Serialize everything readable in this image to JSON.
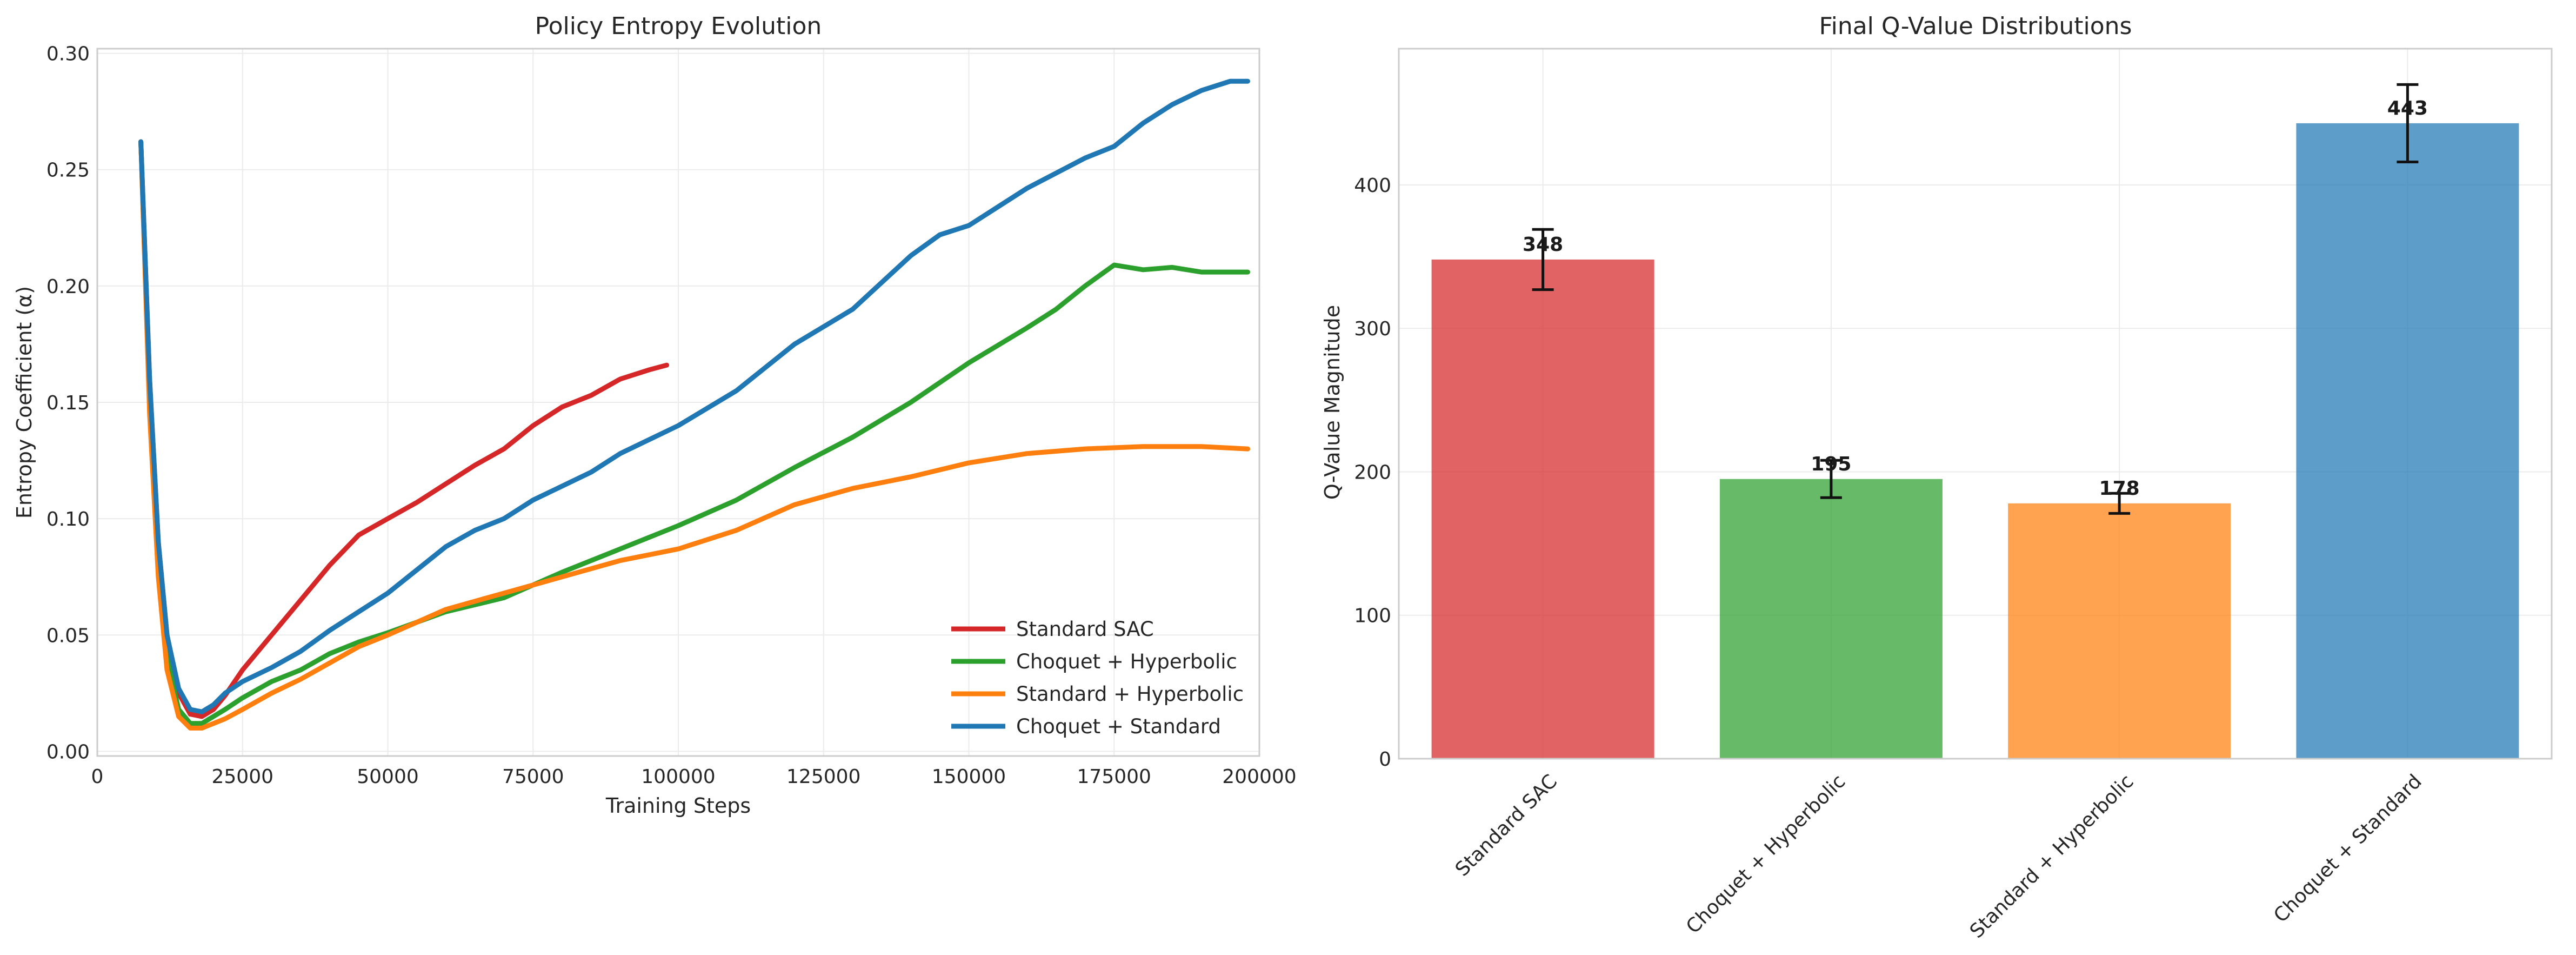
{
  "colors": {
    "standard_sac": "#d62728",
    "choquet_hyperbolic": "#2ca02c",
    "standard_hyperbolic": "#ff7f0e",
    "choquet_standard": "#1f77b4"
  },
  "chart_data": [
    {
      "type": "line",
      "title": "Policy Entropy Evolution",
      "xlabel": "Training Steps",
      "ylabel": "Entropy Coefficient (α)",
      "xlim": [
        0,
        200000
      ],
      "ylim": [
        -0.002,
        0.302
      ],
      "xticks": [
        "0",
        "25000",
        "50000",
        "75000",
        "100000",
        "125000",
        "150000",
        "175000",
        "200000"
      ],
      "xtick_values": [
        0,
        25000,
        50000,
        75000,
        100000,
        125000,
        150000,
        175000,
        200000
      ],
      "yticks": [
        "0.00",
        "0.05",
        "0.10",
        "0.15",
        "0.20",
        "0.25",
        "0.30"
      ],
      "ytick_values": [
        0,
        0.05,
        0.1,
        0.15,
        0.2,
        0.25,
        0.3
      ],
      "grid": true,
      "legend_position": "lower-right",
      "series": [
        {
          "name": "Standard SAC",
          "color": "#d62728",
          "x": [
            7500,
            9000,
            10500,
            12000,
            14000,
            16000,
            18000,
            20000,
            22000,
            25000,
            30000,
            35000,
            40000,
            45000,
            50000,
            55000,
            60000,
            65000,
            70000,
            75000,
            80000,
            85000,
            90000,
            95000,
            98000
          ],
          "y": [
            0.262,
            0.16,
            0.09,
            0.05,
            0.025,
            0.016,
            0.015,
            0.018,
            0.024,
            0.035,
            0.05,
            0.065,
            0.08,
            0.093,
            0.1,
            0.107,
            0.115,
            0.123,
            0.13,
            0.14,
            0.148,
            0.153,
            0.16,
            0.164,
            0.166
          ]
        },
        {
          "name": "Choquet + Hyperbolic",
          "color": "#2ca02c",
          "x": [
            7500,
            9000,
            10500,
            12000,
            14000,
            16000,
            18000,
            20000,
            22000,
            25000,
            30000,
            35000,
            40000,
            45000,
            50000,
            60000,
            70000,
            80000,
            90000,
            100000,
            110000,
            120000,
            130000,
            140000,
            150000,
            160000,
            165000,
            170000,
            175000,
            180000,
            185000,
            190000,
            198000
          ],
          "y": [
            0.262,
            0.15,
            0.08,
            0.04,
            0.018,
            0.012,
            0.012,
            0.015,
            0.018,
            0.023,
            0.03,
            0.035,
            0.042,
            0.047,
            0.051,
            0.06,
            0.066,
            0.077,
            0.087,
            0.097,
            0.108,
            0.122,
            0.135,
            0.15,
            0.167,
            0.182,
            0.19,
            0.2,
            0.209,
            0.207,
            0.208,
            0.206,
            0.206
          ]
        },
        {
          "name": "Standard + Hyperbolic",
          "color": "#ff7f0e",
          "x": [
            7500,
            9000,
            10500,
            12000,
            14000,
            16000,
            18000,
            20000,
            22000,
            25000,
            30000,
            35000,
            40000,
            45000,
            50000,
            60000,
            70000,
            80000,
            90000,
            100000,
            110000,
            120000,
            130000,
            140000,
            150000,
            160000,
            170000,
            180000,
            190000,
            198000
          ],
          "y": [
            0.262,
            0.145,
            0.075,
            0.035,
            0.015,
            0.01,
            0.01,
            0.012,
            0.014,
            0.018,
            0.025,
            0.031,
            0.038,
            0.045,
            0.05,
            0.061,
            0.068,
            0.075,
            0.082,
            0.087,
            0.095,
            0.106,
            0.113,
            0.118,
            0.124,
            0.128,
            0.13,
            0.131,
            0.131,
            0.13
          ]
        },
        {
          "name": "Choquet + Standard",
          "color": "#1f77b4",
          "x": [
            7500,
            9000,
            10500,
            12000,
            14000,
            16000,
            18000,
            20000,
            22000,
            25000,
            30000,
            35000,
            40000,
            45000,
            50000,
            55000,
            60000,
            65000,
            70000,
            75000,
            80000,
            85000,
            90000,
            95000,
            100000,
            110000,
            120000,
            130000,
            140000,
            145000,
            150000,
            160000,
            170000,
            175000,
            180000,
            185000,
            190000,
            195000,
            198000
          ],
          "y": [
            0.262,
            0.16,
            0.09,
            0.05,
            0.027,
            0.018,
            0.017,
            0.02,
            0.025,
            0.03,
            0.036,
            0.043,
            0.052,
            0.06,
            0.068,
            0.078,
            0.088,
            0.095,
            0.1,
            0.108,
            0.114,
            0.12,
            0.128,
            0.134,
            0.14,
            0.155,
            0.175,
            0.19,
            0.213,
            0.222,
            0.226,
            0.242,
            0.255,
            0.26,
            0.27,
            0.278,
            0.284,
            0.288,
            0.288
          ]
        }
      ]
    },
    {
      "type": "bar",
      "title": "Final Q-Value Distributions",
      "xlabel": "",
      "ylabel": "Q-Value Magnitude",
      "ylim": [
        0,
        495
      ],
      "yticks": [
        "0",
        "100",
        "200",
        "300",
        "400"
      ],
      "ytick_values": [
        0,
        100,
        200,
        300,
        400
      ],
      "grid": true,
      "categories": [
        "Standard SAC",
        "Choquet + Hyperbolic",
        "Standard + Hyperbolic",
        "Choquet + Standard"
      ],
      "values": [
        348,
        195,
        178,
        443
      ],
      "errors": [
        21,
        13,
        7,
        27
      ],
      "data_labels": [
        "348",
        "195",
        "178",
        "443"
      ],
      "colors": [
        "#d62728",
        "#2ca02c",
        "#ff7f0e",
        "#1f77b4"
      ]
    }
  ]
}
